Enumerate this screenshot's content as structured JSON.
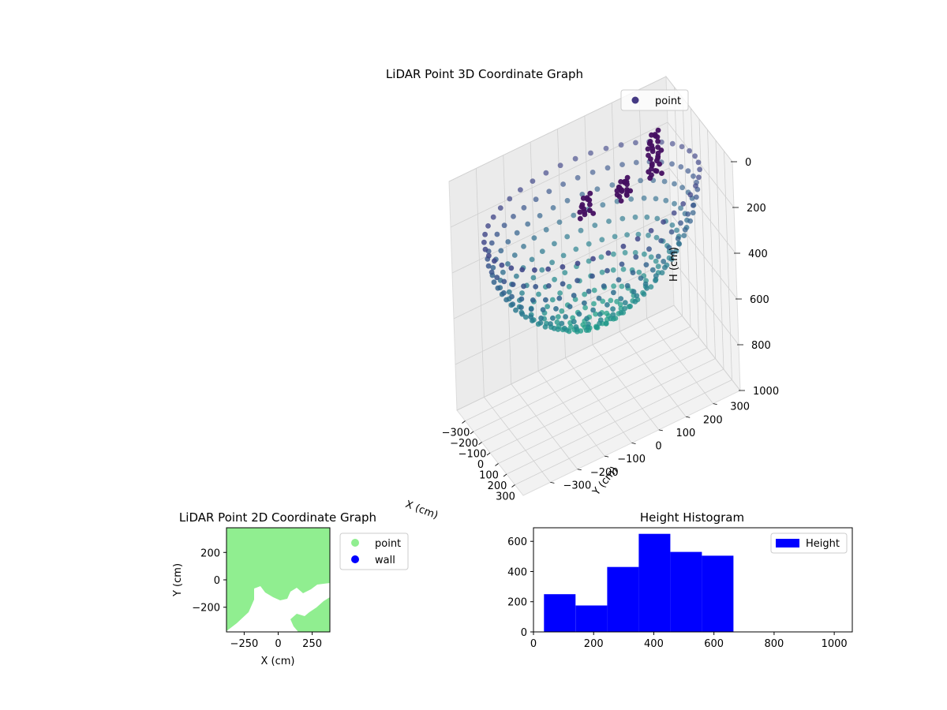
{
  "chart_data": [
    {
      "type": "scatter",
      "projection": "3d",
      "title": "LiDAR Point 3D Coordinate Graph",
      "xlabel": "X (cm)",
      "ylabel": "Y (cm)",
      "zlabel": "H (cm)",
      "xlim": [
        -400,
        400
      ],
      "ylim": [
        -400,
        400
      ],
      "zlim": [
        1000,
        0
      ],
      "z_inverted": true,
      "colormap": "viridis",
      "xticks": [
        "−300",
        "−200",
        "−100",
        "0",
        "100",
        "200",
        "300"
      ],
      "yticks": [
        "−300",
        "−200",
        "−100",
        "0",
        "100",
        "200",
        "300"
      ],
      "zticks": [
        "0",
        "200",
        "400",
        "600",
        "800",
        "1000"
      ],
      "legend": {
        "location": "top-right",
        "entries": [
          {
            "label": "point",
            "color": "#443983"
          }
        ]
      },
      "grid": true,
      "series": [
        {
          "name": "point",
          "description": "roughly hemispherical dome of points, height 0-700 cm, radius ~380 cm",
          "rings": [
            {
              "radius": 380,
              "h": 150,
              "count": 44
            },
            {
              "radius": 370,
              "h": 230,
              "count": 44
            },
            {
              "radius": 355,
              "h": 300,
              "count": 42
            },
            {
              "radius": 330,
              "h": 360,
              "count": 40
            },
            {
              "radius": 300,
              "h": 420,
              "count": 38
            },
            {
              "radius": 265,
              "h": 470,
              "count": 36
            },
            {
              "radius": 225,
              "h": 520,
              "count": 32
            },
            {
              "radius": 180,
              "h": 560,
              "count": 28
            },
            {
              "radius": 135,
              "h": 600,
              "count": 24
            },
            {
              "radius": 90,
              "h": 630,
              "count": 18
            },
            {
              "radius": 45,
              "h": 650,
              "count": 12
            }
          ],
          "clusters": [
            {
              "x": -60,
              "y": 250,
              "h_from": 0,
              "h_to": 200,
              "n": 30
            },
            {
              "x": -120,
              "y": 150,
              "h_from": 180,
              "h_to": 260,
              "n": 20
            },
            {
              "x": -250,
              "y": 50,
              "h_from": 250,
              "h_to": 350,
              "n": 15
            }
          ]
        }
      ]
    },
    {
      "type": "scatter",
      "title": "LiDAR Point 2D Coordinate Graph",
      "xlabel": "X (cm)",
      "ylabel": "Y (cm)",
      "xlim": [
        -380,
        380
      ],
      "ylim": [
        -380,
        380
      ],
      "xticks": [
        "−250",
        "0",
        "250"
      ],
      "yticks": [
        "200",
        "0",
        "−200"
      ],
      "legend": {
        "location": "outside-right",
        "entries": [
          {
            "label": "point",
            "color": "#90ee90"
          },
          {
            "label": "wall",
            "color": "#0000ff"
          }
        ]
      },
      "fill_color": "#90ee90",
      "description": "area almost fully covered by green points; white uncovered region in lower-right"
    },
    {
      "type": "bar",
      "subtype": "histogram",
      "title": "Height Histogram",
      "xlim": [
        0,
        1060
      ],
      "ylim": [
        0,
        690
      ],
      "xticks": [
        "0",
        "200",
        "400",
        "600",
        "800",
        "1000"
      ],
      "yticks": [
        "0",
        "200",
        "400",
        "600"
      ],
      "legend": {
        "location": "top-right",
        "entries": [
          {
            "label": "Height",
            "color": "#0000ff"
          }
        ]
      },
      "series": [
        {
          "name": "Height",
          "color": "#0000ff",
          "bins": [
            {
              "from": 35,
              "to": 140,
              "count": 250
            },
            {
              "from": 140,
              "to": 245,
              "count": 175
            },
            {
              "from": 245,
              "to": 350,
              "count": 430
            },
            {
              "from": 350,
              "to": 455,
              "count": 650
            },
            {
              "from": 455,
              "to": 560,
              "count": 530
            },
            {
              "from": 560,
              "to": 665,
              "count": 505
            }
          ]
        }
      ]
    }
  ]
}
